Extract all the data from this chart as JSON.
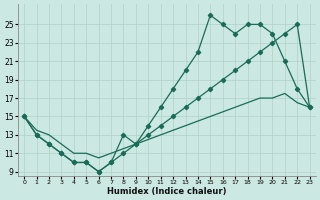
{
  "xlabel": "Humidex (Indice chaleur)",
  "bg_color": "#cce8e2",
  "grid_color": "#b0d0c8",
  "line_color": "#1a6b58",
  "xlim": [
    -0.5,
    23.5
  ],
  "ylim": [
    8.5,
    27.2
  ],
  "xticks": [
    0,
    1,
    2,
    3,
    4,
    5,
    6,
    7,
    8,
    9,
    10,
    11,
    12,
    13,
    14,
    15,
    16,
    17,
    18,
    19,
    20,
    21,
    22,
    23
  ],
  "yticks": [
    9,
    11,
    13,
    15,
    17,
    19,
    21,
    23,
    25
  ],
  "line1_x": [
    0,
    1,
    2,
    3,
    4,
    5,
    6,
    7,
    8,
    9,
    10,
    11,
    12,
    13,
    14,
    15,
    16,
    17,
    18,
    19,
    20,
    21,
    22,
    23
  ],
  "line1_y": [
    15,
    13,
    12,
    11,
    10,
    10,
    9,
    10,
    13,
    12,
    14,
    16,
    18,
    20,
    22,
    26,
    25,
    24,
    25,
    25,
    24,
    21,
    18,
    16
  ],
  "line2_x": [
    0,
    1,
    2,
    3,
    4,
    5,
    6,
    7,
    8,
    9,
    10,
    11,
    12,
    13,
    14,
    15,
    16,
    17,
    18,
    19,
    20,
    21,
    22,
    23
  ],
  "line2_y": [
    15,
    13,
    12,
    11,
    10,
    10,
    9,
    10,
    11,
    12,
    13,
    14,
    15,
    16,
    17,
    18,
    19,
    20,
    21,
    22,
    23,
    24,
    25,
    16
  ],
  "line3_x": [
    0,
    1,
    2,
    3,
    4,
    5,
    6,
    7,
    8,
    9,
    10,
    11,
    12,
    13,
    14,
    15,
    16,
    17,
    18,
    19,
    20,
    21,
    22,
    23
  ],
  "line3_y": [
    15,
    13.5,
    13,
    12,
    11,
    11,
    10.5,
    11,
    11.5,
    12,
    12.5,
    13,
    13.5,
    14,
    14.5,
    15,
    15.5,
    16,
    16.5,
    17,
    17,
    17.5,
    16.5,
    16
  ]
}
